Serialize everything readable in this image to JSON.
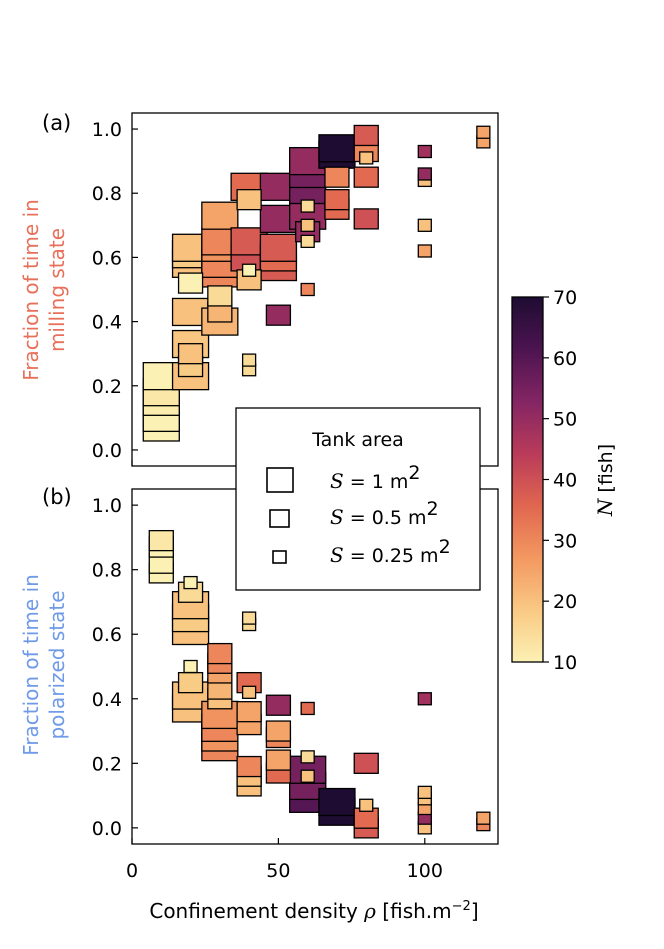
{
  "chart_data": [
    {
      "panel_label": "(a)",
      "type": "scatter",
      "ylabel_lines": [
        "Fraction of time in",
        "milling state"
      ],
      "ylabel_color": "#e8705a",
      "xlim": [
        0,
        125
      ],
      "ylim": [
        -0.05,
        1.05
      ],
      "xticks": [
        0,
        50,
        100
      ],
      "yticks": [
        "0.0",
        "0.2",
        "0.4",
        "0.6",
        "0.8",
        "1.0"
      ],
      "points": [
        {
          "x": 10,
          "y": 0.07,
          "n": 10,
          "s": 1
        },
        {
          "x": 10,
          "y": 0.1,
          "n": 10,
          "s": 1
        },
        {
          "x": 10,
          "y": 0.15,
          "n": 11,
          "s": 1
        },
        {
          "x": 10,
          "y": 0.18,
          "n": 12,
          "s": 1
        },
        {
          "x": 10,
          "y": 0.23,
          "n": 10,
          "s": 1
        },
        {
          "x": 20,
          "y": 0.23,
          "n": 20,
          "s": 1
        },
        {
          "x": 20,
          "y": 0.26,
          "n": 18,
          "s": 0.5
        },
        {
          "x": 20,
          "y": 0.3,
          "n": 20,
          "s": 0.5
        },
        {
          "x": 20,
          "y": 0.33,
          "n": 19,
          "s": 1
        },
        {
          "x": 20,
          "y": 0.43,
          "n": 20,
          "s": 1
        },
        {
          "x": 20,
          "y": 0.52,
          "n": 10,
          "s": 0.5
        },
        {
          "x": 20,
          "y": 0.58,
          "n": 20,
          "s": 1
        },
        {
          "x": 20,
          "y": 0.61,
          "n": 18,
          "s": 1
        },
        {
          "x": 20,
          "y": 0.63,
          "n": 20,
          "s": 1
        },
        {
          "x": 30,
          "y": 0.4,
          "n": 22,
          "s": 1
        },
        {
          "x": 30,
          "y": 0.43,
          "n": 22,
          "s": 0.5
        },
        {
          "x": 30,
          "y": 0.48,
          "n": 15,
          "s": 0.5
        },
        {
          "x": 30,
          "y": 0.55,
          "n": 30,
          "s": 1
        },
        {
          "x": 30,
          "y": 0.58,
          "n": 30,
          "s": 1
        },
        {
          "x": 30,
          "y": 0.63,
          "n": 28,
          "s": 1
        },
        {
          "x": 30,
          "y": 0.65,
          "n": 30,
          "s": 1
        },
        {
          "x": 30,
          "y": 0.73,
          "n": 25,
          "s": 1
        },
        {
          "x": 40,
          "y": 0.25,
          "n": 15,
          "s": 0.25
        },
        {
          "x": 40,
          "y": 0.28,
          "n": 15,
          "s": 0.25
        },
        {
          "x": 40,
          "y": 0.53,
          "n": 20,
          "s": 0.5
        },
        {
          "x": 40,
          "y": 0.56,
          "n": 10,
          "s": 0.25
        },
        {
          "x": 40,
          "y": 0.6,
          "n": 40,
          "s": 1
        },
        {
          "x": 40,
          "y": 0.65,
          "n": 38,
          "s": 1
        },
        {
          "x": 40,
          "y": 0.78,
          "n": 20,
          "s": 0.5
        },
        {
          "x": 40,
          "y": 0.82,
          "n": 35,
          "s": 1
        },
        {
          "x": 50,
          "y": 0.42,
          "n": 50,
          "s": 0.5
        },
        {
          "x": 50,
          "y": 0.57,
          "n": 38,
          "s": 1
        },
        {
          "x": 50,
          "y": 0.6,
          "n": 35,
          "s": 1
        },
        {
          "x": 50,
          "y": 0.63,
          "n": 38,
          "s": 1
        },
        {
          "x": 50,
          "y": 0.72,
          "n": 50,
          "s": 1
        },
        {
          "x": 50,
          "y": 0.82,
          "n": 50,
          "s": 1
        },
        {
          "x": 60,
          "y": 0.5,
          "n": 30,
          "s": 0.25
        },
        {
          "x": 60,
          "y": 0.65,
          "n": 15,
          "s": 0.25
        },
        {
          "x": 60,
          "y": 0.68,
          "n": 50,
          "s": 0.5
        },
        {
          "x": 60,
          "y": 0.7,
          "n": 20,
          "s": 0.25
        },
        {
          "x": 60,
          "y": 0.73,
          "n": 50,
          "s": 1
        },
        {
          "x": 60,
          "y": 0.76,
          "n": 15,
          "s": 0.25
        },
        {
          "x": 60,
          "y": 0.81,
          "n": 55,
          "s": 1
        },
        {
          "x": 60,
          "y": 0.86,
          "n": 55,
          "s": 1
        },
        {
          "x": 60,
          "y": 0.9,
          "n": 50,
          "s": 1
        },
        {
          "x": 70,
          "y": 0.75,
          "n": 35,
          "s": 0.5
        },
        {
          "x": 70,
          "y": 0.78,
          "n": 35,
          "s": 0.5
        },
        {
          "x": 70,
          "y": 0.85,
          "n": 30,
          "s": 0.5
        },
        {
          "x": 70,
          "y": 0.92,
          "n": 70,
          "s": 1
        },
        {
          "x": 70,
          "y": 0.94,
          "n": 70,
          "s": 1
        },
        {
          "x": 80,
          "y": 0.72,
          "n": 40,
          "s": 0.5
        },
        {
          "x": 80,
          "y": 0.85,
          "n": 35,
          "s": 0.5
        },
        {
          "x": 80,
          "y": 0.91,
          "n": 20,
          "s": 0.25
        },
        {
          "x": 80,
          "y": 0.93,
          "n": 30,
          "s": 0.5
        },
        {
          "x": 80,
          "y": 0.98,
          "n": 38,
          "s": 0.5
        },
        {
          "x": 100,
          "y": 0.62,
          "n": 25,
          "s": 0.25
        },
        {
          "x": 100,
          "y": 0.7,
          "n": 20,
          "s": 0.25
        },
        {
          "x": 100,
          "y": 0.84,
          "n": 20,
          "s": 0.25
        },
        {
          "x": 100,
          "y": 0.86,
          "n": 50,
          "s": 0.25
        },
        {
          "x": 100,
          "y": 0.93,
          "n": 48,
          "s": 0.25
        },
        {
          "x": 120,
          "y": 0.96,
          "n": 25,
          "s": 0.25
        },
        {
          "x": 120,
          "y": 0.99,
          "n": 25,
          "s": 0.25
        }
      ]
    },
    {
      "panel_label": "(b)",
      "type": "scatter",
      "ylabel_lines": [
        "Fraction of time in",
        "polarized state"
      ],
      "ylabel_color": "#6f9ae8",
      "xlabel": "Confinement density",
      "xlabel_symbol": "ρ",
      "xlabel_unit": "[fish.m",
      "xlabel_exp": "−2",
      "xlabel_close": "]",
      "xlim": [
        0,
        125
      ],
      "ylim": [
        -0.05,
        1.05
      ],
      "xticks": [
        0,
        50,
        100
      ],
      "yticks": [
        "0.0",
        "0.2",
        "0.4",
        "0.6",
        "0.8",
        "1.0"
      ],
      "points": [
        {
          "x": 10,
          "y": 0.79,
          "n": 10,
          "s": 0.5
        },
        {
          "x": 10,
          "y": 0.82,
          "n": 10,
          "s": 0.5
        },
        {
          "x": 10,
          "y": 0.87,
          "n": 10,
          "s": 0.5
        },
        {
          "x": 10,
          "y": 0.89,
          "n": 12,
          "s": 0.5
        },
        {
          "x": 20,
          "y": 0.37,
          "n": 20,
          "s": 1
        },
        {
          "x": 20,
          "y": 0.41,
          "n": 20,
          "s": 1
        },
        {
          "x": 20,
          "y": 0.45,
          "n": 18,
          "s": 0.5
        },
        {
          "x": 20,
          "y": 0.5,
          "n": 10,
          "s": 0.25
        },
        {
          "x": 20,
          "y": 0.61,
          "n": 20,
          "s": 1
        },
        {
          "x": 20,
          "y": 0.65,
          "n": 18,
          "s": 1
        },
        {
          "x": 20,
          "y": 0.69,
          "n": 20,
          "s": 1
        },
        {
          "x": 20,
          "y": 0.73,
          "n": 15,
          "s": 0.5
        },
        {
          "x": 20,
          "y": 0.76,
          "n": 10,
          "s": 0.25
        },
        {
          "x": 30,
          "y": 0.25,
          "n": 30,
          "s": 1
        },
        {
          "x": 30,
          "y": 0.28,
          "n": 28,
          "s": 1
        },
        {
          "x": 30,
          "y": 0.31,
          "n": 30,
          "s": 1
        },
        {
          "x": 30,
          "y": 0.35,
          "n": 28,
          "s": 1
        },
        {
          "x": 30,
          "y": 0.4,
          "n": 20,
          "s": 0.5
        },
        {
          "x": 30,
          "y": 0.43,
          "n": 22,
          "s": 0.5
        },
        {
          "x": 30,
          "y": 0.48,
          "n": 25,
          "s": 0.5
        },
        {
          "x": 30,
          "y": 0.51,
          "n": 30,
          "s": 0.5
        },
        {
          "x": 30,
          "y": 0.54,
          "n": 30,
          "s": 0.5
        },
        {
          "x": 40,
          "y": 0.13,
          "n": 20,
          "s": 0.5
        },
        {
          "x": 40,
          "y": 0.16,
          "n": 20,
          "s": 0.5
        },
        {
          "x": 40,
          "y": 0.19,
          "n": 30,
          "s": 0.5
        },
        {
          "x": 40,
          "y": 0.32,
          "n": 25,
          "s": 0.5
        },
        {
          "x": 40,
          "y": 0.36,
          "n": 25,
          "s": 0.5
        },
        {
          "x": 40,
          "y": 0.42,
          "n": 20,
          "s": 0.25
        },
        {
          "x": 40,
          "y": 0.45,
          "n": 35,
          "s": 0.5
        },
        {
          "x": 40,
          "y": 0.63,
          "n": 15,
          "s": 0.25
        },
        {
          "x": 40,
          "y": 0.65,
          "n": 15,
          "s": 0.25
        },
        {
          "x": 50,
          "y": 0.17,
          "n": 35,
          "s": 0.5
        },
        {
          "x": 50,
          "y": 0.21,
          "n": 25,
          "s": 0.5
        },
        {
          "x": 50,
          "y": 0.28,
          "n": 30,
          "s": 0.5
        },
        {
          "x": 50,
          "y": 0.3,
          "n": 25,
          "s": 0.5
        },
        {
          "x": 50,
          "y": 0.38,
          "n": 50,
          "s": 0.5
        },
        {
          "x": 60,
          "y": 0.09,
          "n": 60,
          "s": 1
        },
        {
          "x": 60,
          "y": 0.13,
          "n": 55,
          "s": 1
        },
        {
          "x": 60,
          "y": 0.16,
          "n": 20,
          "s": 0.25
        },
        {
          "x": 60,
          "y": 0.18,
          "n": 55,
          "s": 1
        },
        {
          "x": 60,
          "y": 0.22,
          "n": 15,
          "s": 0.25
        },
        {
          "x": 60,
          "y": 0.37,
          "n": 35,
          "s": 0.25
        },
        {
          "x": 70,
          "y": 0.05,
          "n": 70,
          "s": 1
        },
        {
          "x": 70,
          "y": 0.08,
          "n": 70,
          "s": 1
        },
        {
          "x": 80,
          "y": 0.0,
          "n": 38,
          "s": 0.5
        },
        {
          "x": 80,
          "y": 0.03,
          "n": 35,
          "s": 0.5
        },
        {
          "x": 80,
          "y": 0.07,
          "n": 20,
          "s": 0.25
        },
        {
          "x": 80,
          "y": 0.2,
          "n": 40,
          "s": 0.5
        },
        {
          "x": 100,
          "y": 0.0,
          "n": 20,
          "s": 0.25
        },
        {
          "x": 100,
          "y": 0.03,
          "n": 50,
          "s": 0.25
        },
        {
          "x": 100,
          "y": 0.06,
          "n": 25,
          "s": 0.25
        },
        {
          "x": 100,
          "y": 0.09,
          "n": 20,
          "s": 0.25
        },
        {
          "x": 100,
          "y": 0.11,
          "n": 20,
          "s": 0.25
        },
        {
          "x": 100,
          "y": 0.4,
          "n": 48,
          "s": 0.25
        },
        {
          "x": 120,
          "y": 0.01,
          "n": 30,
          "s": 0.25
        },
        {
          "x": 120,
          "y": 0.03,
          "n": 25,
          "s": 0.25
        }
      ]
    }
  ],
  "legend": {
    "title": "Tank area",
    "entries": [
      {
        "s": 1,
        "var": "S",
        "text": " = 1 m",
        "exp": "2"
      },
      {
        "s": 0.5,
        "var": "S",
        "text": " = 0.5 m",
        "exp": "2"
      },
      {
        "s": 0.25,
        "var": "S",
        "text": " = 0.25 m",
        "exp": "2"
      }
    ]
  },
  "colorbar": {
    "label_var": "N",
    "label_text": "[fish]",
    "range": [
      10,
      70
    ],
    "ticks": [
      "10",
      "20",
      "30",
      "40",
      "50",
      "60",
      "70"
    ],
    "colormap": [
      "#fcf1b4",
      "#f9c983",
      "#f39860",
      "#e06650",
      "#b93b5a",
      "#832563",
      "#4c1450",
      "#1e0c32"
    ]
  }
}
